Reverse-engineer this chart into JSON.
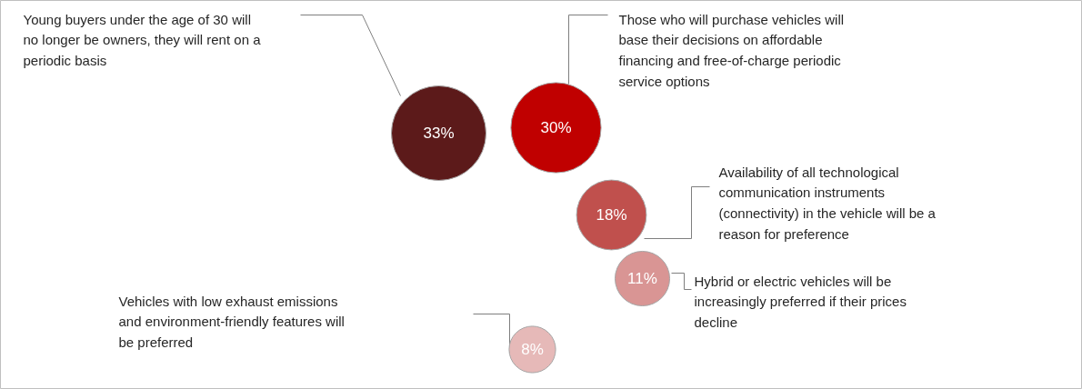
{
  "chart_data": {
    "type": "other",
    "categories": [
      "Young buyers under the age of 30 will no longer be owners, they will rent on a periodic basis",
      "Those who will purchase vehicles will base their decisions on affordable financing and free-of-charge periodic service options",
      "Availability of all technological communication instruments (connectivity) in the vehicle will be a reason for preference",
      "Hybrid or electric vehicles will be increasingly preferred if their prices decline",
      "Vehicles with low exhaust emissions and environment-friendly features will be preferred"
    ],
    "values": [
      33,
      30,
      18,
      11,
      8
    ],
    "value_labels": [
      "33%",
      "30%",
      "18%",
      "11%",
      "8%"
    ],
    "colors": [
      "#5c1a1a",
      "#c00000",
      "#c0504d",
      "#d99594",
      "#e6b9b8"
    ]
  }
}
